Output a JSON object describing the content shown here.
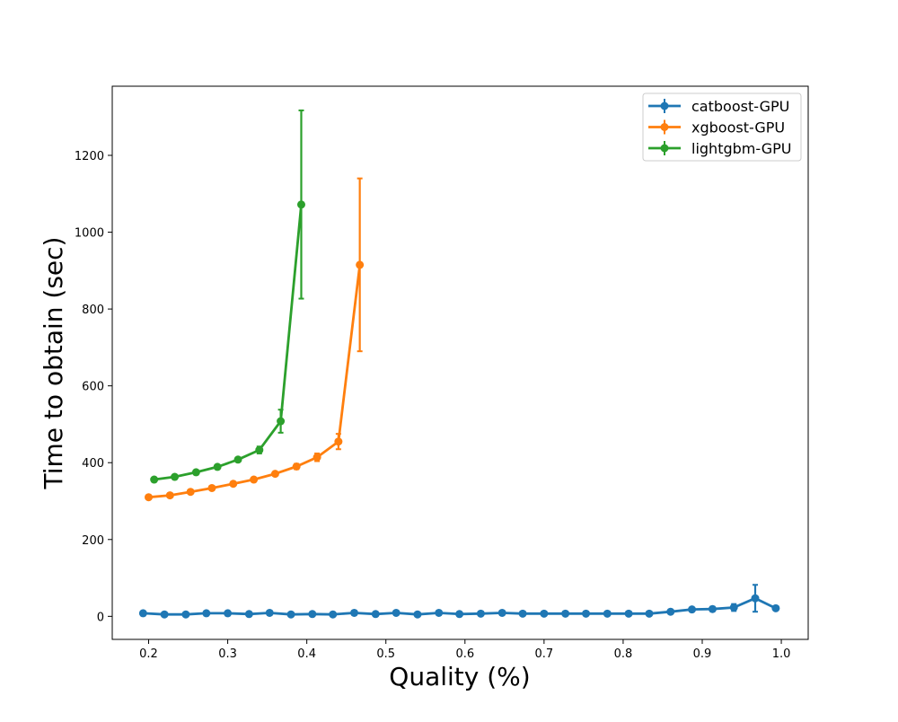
{
  "chart_data": {
    "type": "line",
    "title": "",
    "xlabel": "Quality (%)",
    "ylabel": "Time to obtain (sec)",
    "xlim": [
      0.154,
      1.034
    ],
    "ylim": [
      -60,
      1380
    ],
    "xticks": [
      "0.2",
      "0.3",
      "0.4",
      "0.5",
      "0.6",
      "0.7",
      "0.8",
      "0.9",
      "1.0"
    ],
    "yticks": [
      "0",
      "200",
      "400",
      "600",
      "800",
      "1000",
      "1200"
    ],
    "grid": false,
    "legend_position": "top-right",
    "series": [
      {
        "name": "catboost-GPU",
        "color": "#1f77b4",
        "points": [
          {
            "x": 0.193,
            "y": 8,
            "err": 2
          },
          {
            "x": 0.22,
            "y": 5,
            "err": 2
          },
          {
            "x": 0.247,
            "y": 5,
            "err": 2
          },
          {
            "x": 0.273,
            "y": 8,
            "err": 2
          },
          {
            "x": 0.3,
            "y": 8,
            "err": 2
          },
          {
            "x": 0.327,
            "y": 6,
            "err": 2
          },
          {
            "x": 0.353,
            "y": 9,
            "err": 2
          },
          {
            "x": 0.38,
            "y": 5,
            "err": 2
          },
          {
            "x": 0.407,
            "y": 6,
            "err": 2
          },
          {
            "x": 0.433,
            "y": 5,
            "err": 2
          },
          {
            "x": 0.46,
            "y": 9,
            "err": 2
          },
          {
            "x": 0.487,
            "y": 6,
            "err": 2
          },
          {
            "x": 0.513,
            "y": 9,
            "err": 2
          },
          {
            "x": 0.54,
            "y": 5,
            "err": 2
          },
          {
            "x": 0.567,
            "y": 9,
            "err": 2
          },
          {
            "x": 0.593,
            "y": 6,
            "err": 2
          },
          {
            "x": 0.62,
            "y": 7,
            "err": 2
          },
          {
            "x": 0.647,
            "y": 9,
            "err": 2
          },
          {
            "x": 0.673,
            "y": 7,
            "err": 2
          },
          {
            "x": 0.7,
            "y": 7,
            "err": 2
          },
          {
            "x": 0.727,
            "y": 7,
            "err": 2
          },
          {
            "x": 0.753,
            "y": 7,
            "err": 2
          },
          {
            "x": 0.78,
            "y": 7,
            "err": 2
          },
          {
            "x": 0.807,
            "y": 7,
            "err": 2
          },
          {
            "x": 0.833,
            "y": 7,
            "err": 2
          },
          {
            "x": 0.86,
            "y": 12,
            "err": 3
          },
          {
            "x": 0.887,
            "y": 18,
            "err": 4
          },
          {
            "x": 0.913,
            "y": 19,
            "err": 6
          },
          {
            "x": 0.94,
            "y": 23,
            "err": 9
          },
          {
            "x": 0.967,
            "y": 47,
            "err": 35
          },
          {
            "x": 0.993,
            "y": 21,
            "err": 4
          }
        ]
      },
      {
        "name": "xgboost-GPU",
        "color": "#ff7f0e",
        "points": [
          {
            "x": 0.2,
            "y": 310,
            "err": 4
          },
          {
            "x": 0.227,
            "y": 315,
            "err": 4
          },
          {
            "x": 0.253,
            "y": 324,
            "err": 4
          },
          {
            "x": 0.28,
            "y": 334,
            "err": 4
          },
          {
            "x": 0.307,
            "y": 345,
            "err": 4
          },
          {
            "x": 0.333,
            "y": 356,
            "err": 4
          },
          {
            "x": 0.36,
            "y": 371,
            "err": 5
          },
          {
            "x": 0.387,
            "y": 390,
            "err": 7
          },
          {
            "x": 0.413,
            "y": 414,
            "err": 10
          },
          {
            "x": 0.44,
            "y": 455,
            "err": 20
          },
          {
            "x": 0.467,
            "y": 915,
            "err": 225
          }
        ]
      },
      {
        "name": "lightgbm-GPU",
        "color": "#2ca02c",
        "points": [
          {
            "x": 0.207,
            "y": 356,
            "err": 4
          },
          {
            "x": 0.233,
            "y": 363,
            "err": 4
          },
          {
            "x": 0.26,
            "y": 375,
            "err": 4
          },
          {
            "x": 0.287,
            "y": 389,
            "err": 4
          },
          {
            "x": 0.313,
            "y": 408,
            "err": 5
          },
          {
            "x": 0.34,
            "y": 433,
            "err": 9
          },
          {
            "x": 0.367,
            "y": 508,
            "err": 30
          },
          {
            "x": 0.393,
            "y": 1072,
            "err": 245
          }
        ]
      }
    ]
  }
}
